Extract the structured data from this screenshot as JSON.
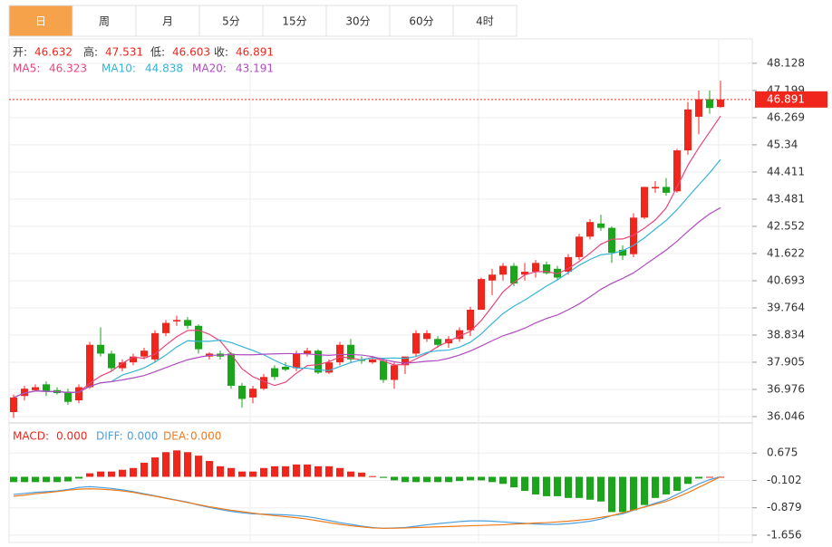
{
  "chart_data": {
    "type": "candlestick",
    "tabs": [
      "日",
      "周",
      "月",
      "5分",
      "15分",
      "30分",
      "60分",
      "4时"
    ],
    "active_tab": 0,
    "ohlc_labels": [
      "开:",
      "高:",
      "低:",
      "收:"
    ],
    "up_color": "#f0261d",
    "down_color": "#1aa51a",
    "candles": [
      [
        36.2,
        36.8,
        36.0,
        36.7
      ],
      [
        36.75,
        37.1,
        36.6,
        37.0
      ],
      [
        36.95,
        37.15,
        36.9,
        37.05
      ],
      [
        37.15,
        37.25,
        36.75,
        36.9
      ],
      [
        36.95,
        37.05,
        36.8,
        36.85
      ],
      [
        36.9,
        37.0,
        36.45,
        36.55
      ],
      [
        36.6,
        37.15,
        36.5,
        37.05
      ],
      [
        37.05,
        38.6,
        37.0,
        38.5
      ],
      [
        38.5,
        39.1,
        38.1,
        38.2
      ],
      [
        38.2,
        38.3,
        37.6,
        37.7
      ],
      [
        37.7,
        38.0,
        37.6,
        37.9
      ],
      [
        37.9,
        38.2,
        37.8,
        38.1
      ],
      [
        38.1,
        38.4,
        38.0,
        38.3
      ],
      [
        38.0,
        39.0,
        37.9,
        38.9
      ],
      [
        38.9,
        39.35,
        38.8,
        39.25
      ],
      [
        39.3,
        39.5,
        39.15,
        39.35
      ],
      [
        39.35,
        39.45,
        39.05,
        39.15
      ],
      [
        39.15,
        39.2,
        38.2,
        38.35
      ],
      [
        38.1,
        38.25,
        38.0,
        38.2
      ],
      [
        38.2,
        38.3,
        38.0,
        38.1
      ],
      [
        38.2,
        38.25,
        37.0,
        37.1
      ],
      [
        37.1,
        37.2,
        36.35,
        36.65
      ],
      [
        36.7,
        37.1,
        36.5,
        37.0
      ],
      [
        37.0,
        37.5,
        36.95,
        37.4
      ],
      [
        37.7,
        37.8,
        37.3,
        37.4
      ],
      [
        37.75,
        37.9,
        37.6,
        37.65
      ],
      [
        37.7,
        38.3,
        37.6,
        38.2
      ],
      [
        38.2,
        38.4,
        38.1,
        38.3
      ],
      [
        38.3,
        38.35,
        37.5,
        37.55
      ],
      [
        37.55,
        38.0,
        37.5,
        37.9
      ],
      [
        37.9,
        38.6,
        37.8,
        38.5
      ],
      [
        38.5,
        38.7,
        37.9,
        38.0
      ],
      [
        38.0,
        38.1,
        37.85,
        37.95
      ],
      [
        37.9,
        38.05,
        37.85,
        38.0
      ],
      [
        37.95,
        38.05,
        37.2,
        37.3
      ],
      [
        37.3,
        37.9,
        37.0,
        37.8
      ],
      [
        37.8,
        38.1,
        37.5,
        38.1
      ],
      [
        38.2,
        39.0,
        38.1,
        38.9
      ],
      [
        38.7,
        39.0,
        38.6,
        38.9
      ],
      [
        38.7,
        38.8,
        38.4,
        38.5
      ],
      [
        38.55,
        38.8,
        38.4,
        38.7
      ],
      [
        38.7,
        39.1,
        38.6,
        39.0
      ],
      [
        39.0,
        39.8,
        38.8,
        39.7
      ],
      [
        39.7,
        40.8,
        39.7,
        40.75
      ],
      [
        40.7,
        41.1,
        40.2,
        40.9
      ],
      [
        40.9,
        41.3,
        40.7,
        41.2
      ],
      [
        41.2,
        41.3,
        40.5,
        40.6
      ],
      [
        40.9,
        41.3,
        40.7,
        41.0
      ],
      [
        41.0,
        41.4,
        40.8,
        41.3
      ],
      [
        41.25,
        41.35,
        40.9,
        40.95
      ],
      [
        41.1,
        41.2,
        40.7,
        40.8
      ],
      [
        41.0,
        41.6,
        40.9,
        41.5
      ],
      [
        41.5,
        42.3,
        41.4,
        42.2
      ],
      [
        42.2,
        42.8,
        42.1,
        42.7
      ],
      [
        42.65,
        42.95,
        42.4,
        42.5
      ],
      [
        42.5,
        42.55,
        41.3,
        41.65
      ],
      [
        41.75,
        41.9,
        41.4,
        41.55
      ],
      [
        41.6,
        43.0,
        41.5,
        42.85
      ],
      [
        42.85,
        43.9,
        42.8,
        43.9
      ],
      [
        43.85,
        44.1,
        43.7,
        43.9
      ],
      [
        43.9,
        44.2,
        43.6,
        43.7
      ],
      [
        43.75,
        45.2,
        43.7,
        45.15
      ],
      [
        45.15,
        46.8,
        45.0,
        46.55
      ],
      [
        46.3,
        47.2,
        45.7,
        46.9
      ],
      [
        46.9,
        47.2,
        46.4,
        46.6
      ],
      [
        46.632,
        47.531,
        46.603,
        46.891
      ]
    ],
    "ylim": [
      35.86,
      48.93
    ],
    "yticks": [
      48.128,
      47.199,
      46.269,
      45.34,
      44.411,
      43.481,
      42.552,
      41.622,
      40.693,
      39.764,
      38.834,
      37.905,
      36.976,
      36.046
    ],
    "grid": true,
    "ma": [
      {
        "name": "MA5:",
        "color": "#e8457a",
        "values": [
          36.7,
          36.85,
          36.92,
          36.91,
          36.9,
          36.87,
          36.88,
          37.18,
          37.43,
          37.6,
          37.87,
          38.08,
          38.04,
          38.18,
          38.49,
          38.78,
          38.99,
          39.0,
          38.86,
          38.63,
          38.18,
          37.68,
          37.41,
          37.25,
          37.11,
          37.22,
          37.53,
          37.79,
          37.82,
          37.92,
          38.09,
          38.05,
          37.98,
          38.07,
          37.95,
          37.81,
          37.83,
          38.02,
          38.2,
          38.44,
          38.62,
          38.8,
          38.96,
          39.33,
          39.81,
          40.31,
          40.63,
          40.89,
          41.0,
          41.01,
          40.93,
          41.11,
          41.35,
          41.63,
          41.94,
          42.11,
          42.12,
          42.25,
          42.49,
          42.77,
          43.18,
          43.9,
          44.64,
          45.24,
          45.78,
          46.323
        ]
      },
      {
        "name": "MA10:",
        "color": "#35b4d6",
        "values": [
          36.7,
          36.85,
          36.92,
          36.91,
          36.9,
          36.87,
          36.88,
          37.08,
          37.2,
          37.24,
          37.47,
          37.58,
          37.71,
          37.91,
          38.15,
          38.43,
          38.64,
          38.62,
          38.62,
          38.66,
          38.58,
          38.44,
          38.31,
          38.16,
          37.97,
          37.8,
          37.71,
          37.7,
          37.64,
          37.62,
          37.76,
          37.89,
          37.99,
          38.05,
          38.04,
          38.05,
          38.04,
          38.1,
          38.24,
          38.3,
          38.32,
          38.42,
          38.59,
          38.87,
          39.23,
          39.57,
          39.82,
          40.03,
          40.27,
          40.51,
          40.72,
          40.97,
          41.22,
          41.42,
          41.58,
          41.62,
          41.72,
          41.9,
          42.16,
          42.46,
          42.75,
          43.12,
          43.55,
          43.97,
          44.38,
          44.838
        ]
      },
      {
        "name": "MA20:",
        "color": "#b04cc0",
        "values": [
          36.7,
          36.85,
          36.92,
          36.91,
          36.9,
          36.87,
          36.88,
          37.08,
          37.2,
          37.24,
          37.3,
          37.37,
          37.45,
          37.58,
          37.72,
          37.86,
          37.99,
          38.07,
          38.14,
          38.15,
          38.17,
          38.16,
          38.16,
          38.18,
          38.19,
          38.2,
          38.2,
          38.19,
          38.16,
          38.14,
          38.17,
          38.17,
          38.15,
          38.1,
          38.0,
          37.92,
          37.87,
          37.9,
          37.94,
          37.96,
          38.04,
          38.15,
          38.29,
          38.46,
          38.64,
          38.81,
          38.93,
          39.07,
          39.25,
          39.4,
          39.52,
          39.7,
          39.9,
          40.14,
          40.4,
          40.6,
          40.77,
          40.96,
          41.22,
          41.48,
          41.74,
          42.04,
          42.38,
          42.7,
          42.98,
          43.191
        ]
      }
    ],
    "macd": {
      "name": "MACD:",
      "legend_values": [
        "0.000",
        "0.000",
        "0.000"
      ],
      "ylim": [
        -1.889,
        1.452
      ],
      "yticks": [
        0.675,
        -0.102,
        -0.879,
        -1.656
      ],
      "hist": [
        -0.15,
        -0.15,
        -0.15,
        -0.15,
        -0.15,
        -0.13,
        -0.05,
        0.1,
        0.15,
        0.15,
        0.2,
        0.25,
        0.4,
        0.55,
        0.7,
        0.75,
        0.7,
        0.6,
        0.45,
        0.3,
        0.25,
        0.15,
        0.15,
        0.25,
        0.3,
        0.3,
        0.35,
        0.35,
        0.3,
        0.3,
        0.25,
        0.15,
        0.12,
        0.02,
        -0.03,
        -0.1,
        -0.15,
        -0.15,
        -0.15,
        -0.15,
        -0.15,
        -0.12,
        -0.1,
        -0.1,
        -0.15,
        -0.2,
        -0.3,
        -0.4,
        -0.5,
        -0.55,
        -0.55,
        -0.6,
        -0.6,
        -0.65,
        -0.7,
        -1.0,
        -1.0,
        -0.95,
        -0.8,
        -0.6,
        -0.5,
        -0.4,
        -0.2,
        -0.05,
        0,
        0
      ],
      "lines": [
        {
          "name": "DIFF:",
          "color": "#4a9fe0",
          "values": [
            -0.5,
            -0.47,
            -0.44,
            -0.42,
            -0.4,
            -0.36,
            -0.3,
            -0.28,
            -0.3,
            -0.33,
            -0.37,
            -0.42,
            -0.48,
            -0.54,
            -0.6,
            -0.66,
            -0.72,
            -0.8,
            -0.87,
            -0.93,
            -0.98,
            -1.02,
            -1.05,
            -1.06,
            -1.07,
            -1.08,
            -1.1,
            -1.13,
            -1.18,
            -1.24,
            -1.3,
            -1.35,
            -1.4,
            -1.44,
            -1.46,
            -1.45,
            -1.44,
            -1.4,
            -1.36,
            -1.33,
            -1.3,
            -1.27,
            -1.25,
            -1.25,
            -1.26,
            -1.28,
            -1.3,
            -1.32,
            -1.34,
            -1.35,
            -1.35,
            -1.33,
            -1.3,
            -1.26,
            -1.2,
            -1.1,
            -1.05,
            -0.95,
            -0.85,
            -0.75,
            -0.65,
            -0.5,
            -0.35,
            -0.2,
            -0.08,
            0
          ]
        },
        {
          "name": "DEA:",
          "color": "#f07a1a",
          "values": [
            -0.55,
            -0.52,
            -0.48,
            -0.45,
            -0.42,
            -0.38,
            -0.35,
            -0.34,
            -0.35,
            -0.37,
            -0.4,
            -0.44,
            -0.5,
            -0.55,
            -0.61,
            -0.67,
            -0.73,
            -0.79,
            -0.85,
            -0.9,
            -0.95,
            -0.99,
            -1.03,
            -1.07,
            -1.1,
            -1.13,
            -1.16,
            -1.2,
            -1.25,
            -1.3,
            -1.35,
            -1.39,
            -1.42,
            -1.45,
            -1.46,
            -1.46,
            -1.45,
            -1.44,
            -1.43,
            -1.42,
            -1.41,
            -1.4,
            -1.39,
            -1.38,
            -1.37,
            -1.36,
            -1.34,
            -1.33,
            -1.31,
            -1.3,
            -1.28,
            -1.26,
            -1.23,
            -1.2,
            -1.15,
            -1.1,
            -1.02,
            -0.94,
            -0.86,
            -0.78,
            -0.7,
            -0.58,
            -0.45,
            -0.3,
            -0.15,
            0
          ]
        }
      ]
    }
  }
}
